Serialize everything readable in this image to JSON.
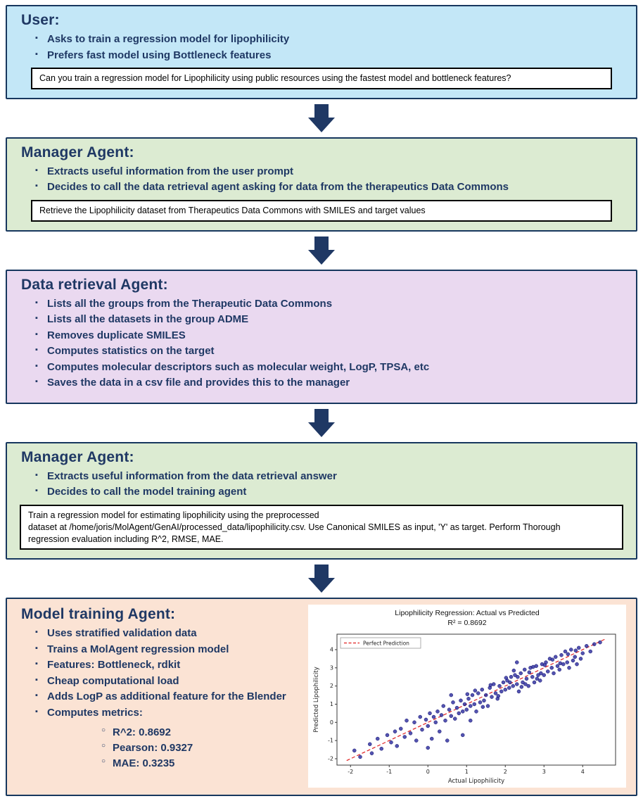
{
  "colors": {
    "navy_accent": "#1F3864",
    "box_border": "#17375E",
    "user_fill": "#C3E7F7",
    "manager_fill": "#DCEBD2",
    "retrieval_fill": "#EAD9F0",
    "training_fill": "#FBE3D4",
    "message_border": "#000000",
    "scatter_point": "#22229A",
    "reference_line": "#E02020"
  },
  "user_box": {
    "title": "User:",
    "bullets": [
      "Asks to train a regression model for lipophilicity",
      "Prefers fast model using Bottleneck features"
    ],
    "message": "Can you train a regression model for Lipophilicity using public resources using the fastest model and bottleneck features?"
  },
  "manager_box_1": {
    "title": "Manager Agent:",
    "bullets": [
      "Extracts useful information from the user prompt",
      "Decides to call the data retrieval agent asking for data from the therapeutics Data Commons"
    ],
    "message": "Retrieve the Lipophilicity dataset from Therapeutics Data Commons with SMILES and target values"
  },
  "data_retrieval_box": {
    "title": "Data retrieval Agent:",
    "bullets": [
      "Lists all the groups from the Therapeutic Data Commons",
      "Lists all the datasets in the group ADME",
      "Removes duplicate SMILES",
      "Computes statistics on the target",
      "Computes molecular descriptors such as molecular weight, LogP, TPSA, etc",
      "Saves the data in a csv file and provides this to the manager"
    ]
  },
  "manager_box_2": {
    "title": "Manager Agent:",
    "bullets": [
      "Extracts useful information from the data retrieval answer",
      "Decides to call the model training agent"
    ],
    "message": "Train a regression model for estimating lipophilicity using the preprocessed\ndataset at  /home/joris/MolAgent/GenAI/processed_data/lipophilicity.csv. Use Canonical SMILES as input, 'Y' as target. Perform Thorough\nregression evaluation including R^2, RMSE, MAE."
  },
  "model_training_box": {
    "title": "Model training Agent:",
    "bullets": [
      "Uses stratified validation data",
      "Trains a MolAgent regression model",
      "Features: Bottleneck, rdkit",
      "Cheap computational load",
      "Adds LogP as additional feature for the Blender",
      "Computes metrics:"
    ],
    "metrics": [
      "R^2: 0.8692",
      "Pearson: 0.9327",
      "MAE: 0.3235"
    ]
  },
  "chart_data": {
    "type": "scatter",
    "title": "Lipophilicity Regression: Actual vs Predicted",
    "subtitle": "R² = 0.8692",
    "xlabel": "Actual Lipophilicity",
    "ylabel": "Predicted Lipophilicity",
    "xlim": [
      -2.35,
      4.85
    ],
    "ylim": [
      -2.35,
      4.85
    ],
    "xticks": [
      -2,
      -1,
      0,
      1,
      2,
      3,
      4
    ],
    "yticks": [
      -2,
      -1,
      0,
      1,
      2,
      3,
      4
    ],
    "grid": false,
    "legend": [
      {
        "label": "Perfect Prediction",
        "style": "red-dashed-line",
        "position": "upper-left"
      }
    ],
    "reference_line": {
      "from": [
        -2.1,
        -2.1
      ],
      "to": [
        4.6,
        4.6
      ],
      "color": "#E02020",
      "dash": true
    },
    "point_color": "#22229A",
    "points": [
      [
        -1.9,
        -1.55
      ],
      [
        -1.75,
        -1.9
      ],
      [
        -1.5,
        -1.2
      ],
      [
        -1.45,
        -1.7
      ],
      [
        -1.3,
        -0.9
      ],
      [
        -1.2,
        -1.45
      ],
      [
        -1.05,
        -0.7
      ],
      [
        -0.95,
        -1.1
      ],
      [
        -0.85,
        -0.5
      ],
      [
        -0.8,
        -1.3
      ],
      [
        -0.7,
        -0.35
      ],
      [
        -0.6,
        -0.8
      ],
      [
        -0.55,
        0.1
      ],
      [
        -0.45,
        -0.6
      ],
      [
        -0.35,
        0.0
      ],
      [
        -0.3,
        -1.0
      ],
      [
        -0.2,
        0.3
      ],
      [
        -0.15,
        -0.4
      ],
      [
        -0.05,
        0.15
      ],
      [
        0.0,
        -0.2
      ],
      [
        0.0,
        -1.4
      ],
      [
        0.05,
        0.5
      ],
      [
        0.1,
        -0.9
      ],
      [
        0.15,
        0.3
      ],
      [
        0.2,
        0.0
      ],
      [
        0.25,
        0.6
      ],
      [
        0.3,
        -0.5
      ],
      [
        0.35,
        0.4
      ],
      [
        0.4,
        0.9
      ],
      [
        0.45,
        0.1
      ],
      [
        0.5,
        -1.0
      ],
      [
        0.55,
        0.7
      ],
      [
        0.6,
        0.35
      ],
      [
        0.6,
        1.5
      ],
      [
        0.65,
        1.1
      ],
      [
        0.7,
        0.2
      ],
      [
        0.75,
        0.8
      ],
      [
        0.8,
        0.5
      ],
      [
        0.85,
        1.2
      ],
      [
        0.9,
        -0.7
      ],
      [
        0.9,
        0.6
      ],
      [
        0.95,
        1.0
      ],
      [
        1.0,
        0.7
      ],
      [
        1.05,
        1.3
      ],
      [
        1.1,
        0.1
      ],
      [
        1.1,
        0.9
      ],
      [
        1.15,
        1.5
      ],
      [
        1.2,
        1.0
      ],
      [
        1.25,
        0.6
      ],
      [
        1.3,
        1.6
      ],
      [
        1.35,
        1.1
      ],
      [
        1.4,
        1.8
      ],
      [
        1.45,
        1.2
      ],
      [
        1.5,
        1.5
      ],
      [
        1.55,
        0.9
      ],
      [
        1.6,
        1.9
      ],
      [
        1.65,
        1.4
      ],
      [
        1.7,
        2.1
      ],
      [
        1.75,
        1.6
      ],
      [
        1.8,
        1.3
      ],
      [
        1.85,
        2.0
      ],
      [
        1.9,
        1.7
      ],
      [
        1.95,
        2.2
      ],
      [
        1.02,
        1.55
      ],
      [
        1.22,
        1.75
      ],
      [
        1.42,
        0.85
      ],
      [
        1.62,
        2.05
      ],
      [
        1.82,
        1.45
      ],
      [
        2.0,
        1.8
      ],
      [
        2.05,
        2.3
      ],
      [
        2.1,
        1.9
      ],
      [
        2.15,
        2.5
      ],
      [
        2.2,
        2.0
      ],
      [
        2.25,
        2.6
      ],
      [
        2.3,
        2.1
      ],
      [
        2.3,
        3.3
      ],
      [
        2.35,
        1.7
      ],
      [
        2.4,
        2.7
      ],
      [
        2.45,
        2.2
      ],
      [
        2.5,
        2.9
      ],
      [
        2.55,
        2.4
      ],
      [
        2.6,
        2.0
      ],
      [
        2.65,
        3.0
      ],
      [
        2.7,
        2.5
      ],
      [
        2.75,
        2.2
      ],
      [
        2.8,
        3.1
      ],
      [
        2.85,
        2.6
      ],
      [
        2.9,
        2.3
      ],
      [
        2.95,
        3.2
      ],
      [
        2.02,
        2.45
      ],
      [
        2.22,
        2.85
      ],
      [
        2.42,
        1.95
      ],
      [
        2.62,
        2.75
      ],
      [
        2.82,
        2.4
      ],
      [
        2.12,
        2.2
      ],
      [
        2.32,
        2.5
      ],
      [
        2.52,
        2.1
      ],
      [
        2.72,
        3.05
      ],
      [
        2.92,
        2.7
      ],
      [
        3.0,
        2.6
      ],
      [
        3.05,
        3.3
      ],
      [
        3.1,
        2.8
      ],
      [
        3.15,
        3.5
      ],
      [
        3.2,
        3.0
      ],
      [
        3.25,
        2.7
      ],
      [
        3.3,
        3.6
      ],
      [
        3.35,
        3.1
      ],
      [
        3.4,
        2.9
      ],
      [
        3.45,
        3.7
      ],
      [
        3.5,
        3.2
      ],
      [
        3.55,
        3.9
      ],
      [
        3.6,
        3.3
      ],
      [
        3.65,
        3.0
      ],
      [
        3.7,
        4.0
      ],
      [
        3.75,
        3.4
      ],
      [
        3.8,
        3.6
      ],
      [
        3.85,
        3.2
      ],
      [
        3.9,
        4.1
      ],
      [
        3.95,
        3.5
      ],
      [
        4.0,
        3.8
      ],
      [
        4.1,
        4.2
      ],
      [
        4.2,
        3.9
      ],
      [
        4.3,
        4.3
      ],
      [
        4.45,
        4.4
      ],
      [
        3.02,
        3.15
      ],
      [
        3.22,
        3.45
      ],
      [
        3.42,
        3.25
      ],
      [
        3.62,
        3.75
      ],
      [
        3.82,
        3.95
      ]
    ]
  }
}
